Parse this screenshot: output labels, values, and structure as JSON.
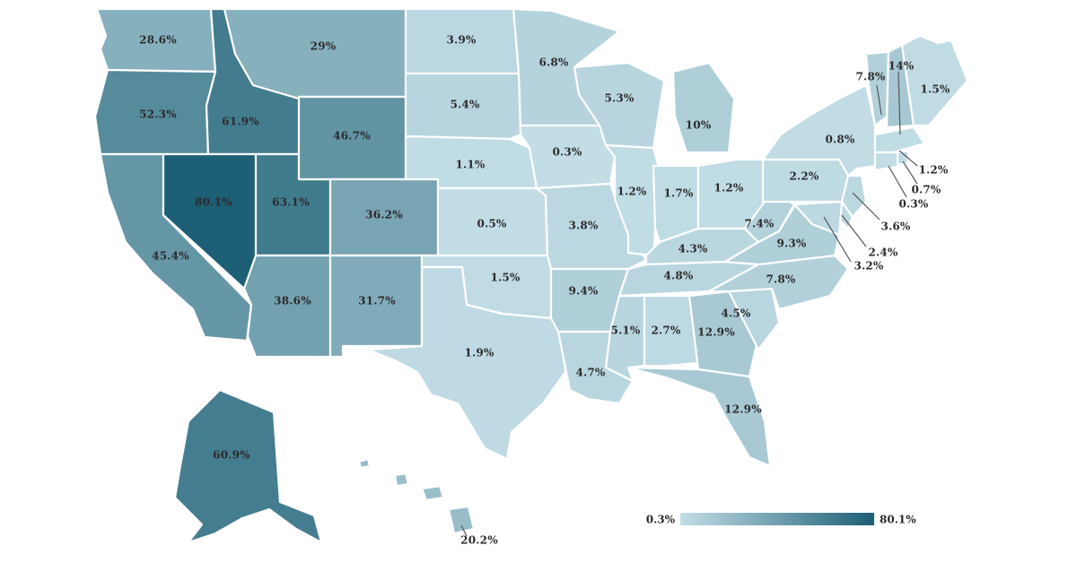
{
  "colors": {
    "low": "#c2dde6",
    "high": "#1d5f75",
    "border": "#ffffff",
    "text": "#2b2b2b"
  },
  "legend": {
    "min_label": "0.3%",
    "max_label": "80.1%",
    "min": 0.3,
    "max": 80.1
  },
  "states": [
    {
      "id": "WA",
      "label": "28.6%",
      "value": 28.6
    },
    {
      "id": "OR",
      "label": "52.3%",
      "value": 52.3
    },
    {
      "id": "CA",
      "label": "45.4%",
      "value": 45.4
    },
    {
      "id": "ID",
      "label": "61.9%",
      "value": 61.9
    },
    {
      "id": "NV",
      "label": "80.1%",
      "value": 80.1
    },
    {
      "id": "UT",
      "label": "63.1%",
      "value": 63.1
    },
    {
      "id": "AZ",
      "label": "38.6%",
      "value": 38.6
    },
    {
      "id": "MT",
      "label": "29%",
      "value": 29
    },
    {
      "id": "WY",
      "label": "46.7%",
      "value": 46.7
    },
    {
      "id": "CO",
      "label": "36.2%",
      "value": 36.2
    },
    {
      "id": "NM",
      "label": "31.7%",
      "value": 31.7
    },
    {
      "id": "ND",
      "label": "3.9%",
      "value": 3.9
    },
    {
      "id": "SD",
      "label": "5.4%",
      "value": 5.4
    },
    {
      "id": "NE",
      "label": "1.1%",
      "value": 1.1
    },
    {
      "id": "KS",
      "label": "0.5%",
      "value": 0.5
    },
    {
      "id": "OK",
      "label": "1.5%",
      "value": 1.5
    },
    {
      "id": "TX",
      "label": "1.9%",
      "value": 1.9
    },
    {
      "id": "MN",
      "label": "6.8%",
      "value": 6.8
    },
    {
      "id": "IA",
      "label": "0.3%",
      "value": 0.3
    },
    {
      "id": "MO",
      "label": "3.8%",
      "value": 3.8
    },
    {
      "id": "AR",
      "label": "9.4%",
      "value": 9.4
    },
    {
      "id": "LA",
      "label": "4.7%",
      "value": 4.7
    },
    {
      "id": "WI",
      "label": "5.3%",
      "value": 5.3
    },
    {
      "id": "IL",
      "label": "1.2%",
      "value": 1.2
    },
    {
      "id": "MI",
      "label": "10%",
      "value": 10
    },
    {
      "id": "IN",
      "label": "1.7%",
      "value": 1.7
    },
    {
      "id": "OH",
      "label": "1.2%",
      "value": 1.2
    },
    {
      "id": "KY",
      "label": "4.3%",
      "value": 4.3
    },
    {
      "id": "TN",
      "label": "4.8%",
      "value": 4.8
    },
    {
      "id": "MS",
      "label": "5.1%",
      "value": 5.1
    },
    {
      "id": "AL",
      "label": "2.7%",
      "value": 2.7
    },
    {
      "id": "GA",
      "label": "12.9%",
      "value": 12.9
    },
    {
      "id": "FL",
      "label": "12.9%",
      "value": 12.9
    },
    {
      "id": "SC",
      "label": "4.5%",
      "value": 4.5
    },
    {
      "id": "NC",
      "label": "7.8%",
      "value": 7.8
    },
    {
      "id": "VA",
      "label": "9.3%",
      "value": 9.3
    },
    {
      "id": "WV",
      "label": "7.4%",
      "value": 7.4
    },
    {
      "id": "PA",
      "label": "2.2%",
      "value": 2.2
    },
    {
      "id": "NY",
      "label": "0.8%",
      "value": 0.8
    },
    {
      "id": "VT",
      "label": "7.8%",
      "value": 7.8
    },
    {
      "id": "NH",
      "label": "14%",
      "value": 14
    },
    {
      "id": "ME",
      "label": "1.5%",
      "value": 1.5
    },
    {
      "id": "MA",
      "label": "1.2%",
      "value": 1.2
    },
    {
      "id": "RI",
      "label": "0.7%",
      "value": 0.7
    },
    {
      "id": "CT",
      "label": "0.3%",
      "value": 0.3
    },
    {
      "id": "NJ",
      "label": "3.6%",
      "value": 3.6
    },
    {
      "id": "DE",
      "label": "2.4%",
      "value": 2.4
    },
    {
      "id": "MD",
      "label": "3.2%",
      "value": 3.2
    },
    {
      "id": "AK",
      "label": "60.9%",
      "value": 60.9
    },
    {
      "id": "HI",
      "label": "20.2%",
      "value": 20.2
    }
  ]
}
